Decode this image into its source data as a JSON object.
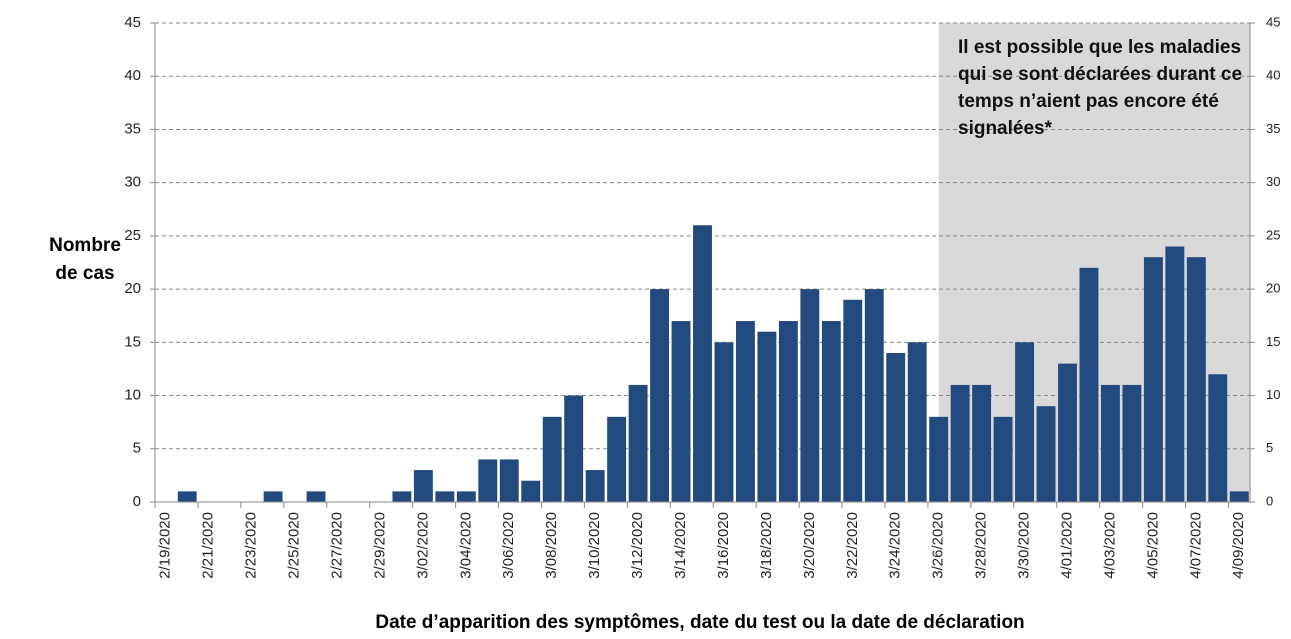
{
  "chart_data": {
    "type": "bar",
    "y_label": "Nombre de cas",
    "x_label": "Date d’apparition des symptômes, date du test ou la date de déclaration",
    "annotation": "Il est possible que les maladies qui se sont déclarées durant ce temps n’aient pas encore été signalées*",
    "shaded_from": 37,
    "categories": [
      "2/19/2020",
      null,
      "2/21/2020",
      null,
      "2/23/2020",
      null,
      "2/25/2020",
      null,
      "2/27/2020",
      null,
      "2/29/2020",
      null,
      "3/02/2020",
      null,
      "3/04/2020",
      null,
      "3/06/2020",
      null,
      "3/08/2020",
      null,
      "3/10/2020",
      null,
      "3/12/2020",
      null,
      "3/14/2020",
      null,
      "3/16/2020",
      null,
      "3/18/2020",
      null,
      "3/20/2020",
      null,
      "3/22/2020",
      null,
      "3/24/2020",
      null,
      "3/26/2020",
      null,
      "3/28/2020",
      null,
      "3/30/2020",
      null,
      "4/01/2020",
      null,
      "4/03/2020",
      null,
      "4/05/2020",
      null,
      "4/07/2020",
      null,
      "4/09/2020"
    ],
    "values": [
      0,
      1,
      0,
      0,
      0,
      1,
      0,
      1,
      0,
      0,
      0,
      1,
      3,
      1,
      1,
      4,
      4,
      2,
      8,
      10,
      3,
      8,
      11,
      20,
      17,
      26,
      15,
      17,
      16,
      17,
      20,
      17,
      19,
      20,
      14,
      15,
      8,
      11,
      11,
      8,
      15,
      9,
      13,
      22,
      11,
      11,
      23,
      24,
      23,
      12,
      1
    ],
    "color": "#234a7e",
    "ylim": [
      0,
      45
    ],
    "yticks": [
      0,
      5,
      10,
      15,
      20,
      25,
      30,
      35,
      40,
      45
    ],
    "y2lim": [
      0,
      45
    ],
    "y2ticks": [
      0,
      5,
      10,
      15,
      20,
      25,
      30,
      35,
      40,
      45
    ],
    "grid": true
  }
}
